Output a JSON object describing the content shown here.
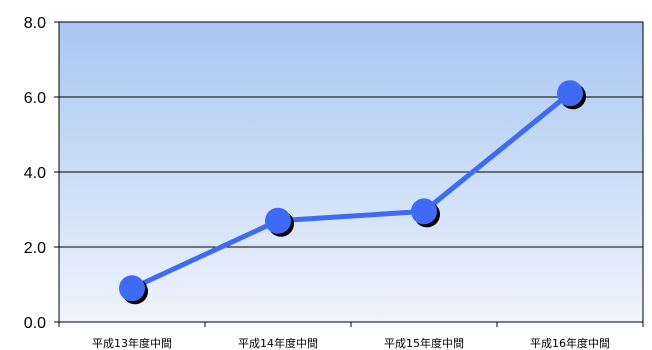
{
  "chart_data": {
    "type": "line",
    "title": "",
    "xlabel": "",
    "ylabel": "",
    "categories": [
      "平成13年度中間",
      "平成14年度中間",
      "平成15年度中間",
      "平成16年度中間"
    ],
    "series": [
      {
        "values": [
          0.9,
          2.7,
          2.95,
          6.1
        ]
      }
    ],
    "ylim": [
      0,
      8
    ],
    "yticks": [
      "0.0",
      "2.0",
      "4.0",
      "6.0",
      "8.0"
    ],
    "grid": true,
    "legend": "none",
    "colors": {
      "line": "#3f6bf4",
      "marker": "#3f6bf4",
      "marker_shadow": "#000000",
      "plot_bg_top": "#a9c6f0",
      "plot_bg_bottom": "#eef4fc",
      "gridline": "#000000"
    }
  }
}
